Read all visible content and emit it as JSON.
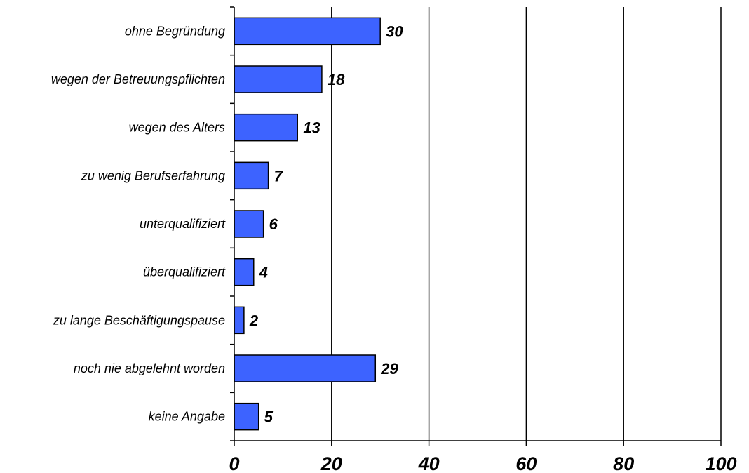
{
  "chart_data": {
    "type": "bar",
    "orientation": "horizontal",
    "categories": [
      "ohne Begründung",
      "wegen der Betreuungspflichten",
      "wegen des Alters",
      "zu wenig Berufserfahrung",
      "unterqualifiziert",
      "überqualifiziert",
      "zu lange Beschäftigungspause",
      "noch nie abgelehnt worden",
      "keine Angabe"
    ],
    "values": [
      30,
      18,
      13,
      7,
      6,
      4,
      2,
      29,
      5
    ],
    "xlim": [
      0,
      100
    ],
    "xticks": [
      0,
      20,
      40,
      60,
      80,
      100
    ],
    "grid": "vertical",
    "legend": "none",
    "colors": {
      "bar_fill": "#3d63ff",
      "bar_stroke": "#000000",
      "axis": "#000000",
      "grid": "#000000"
    }
  }
}
